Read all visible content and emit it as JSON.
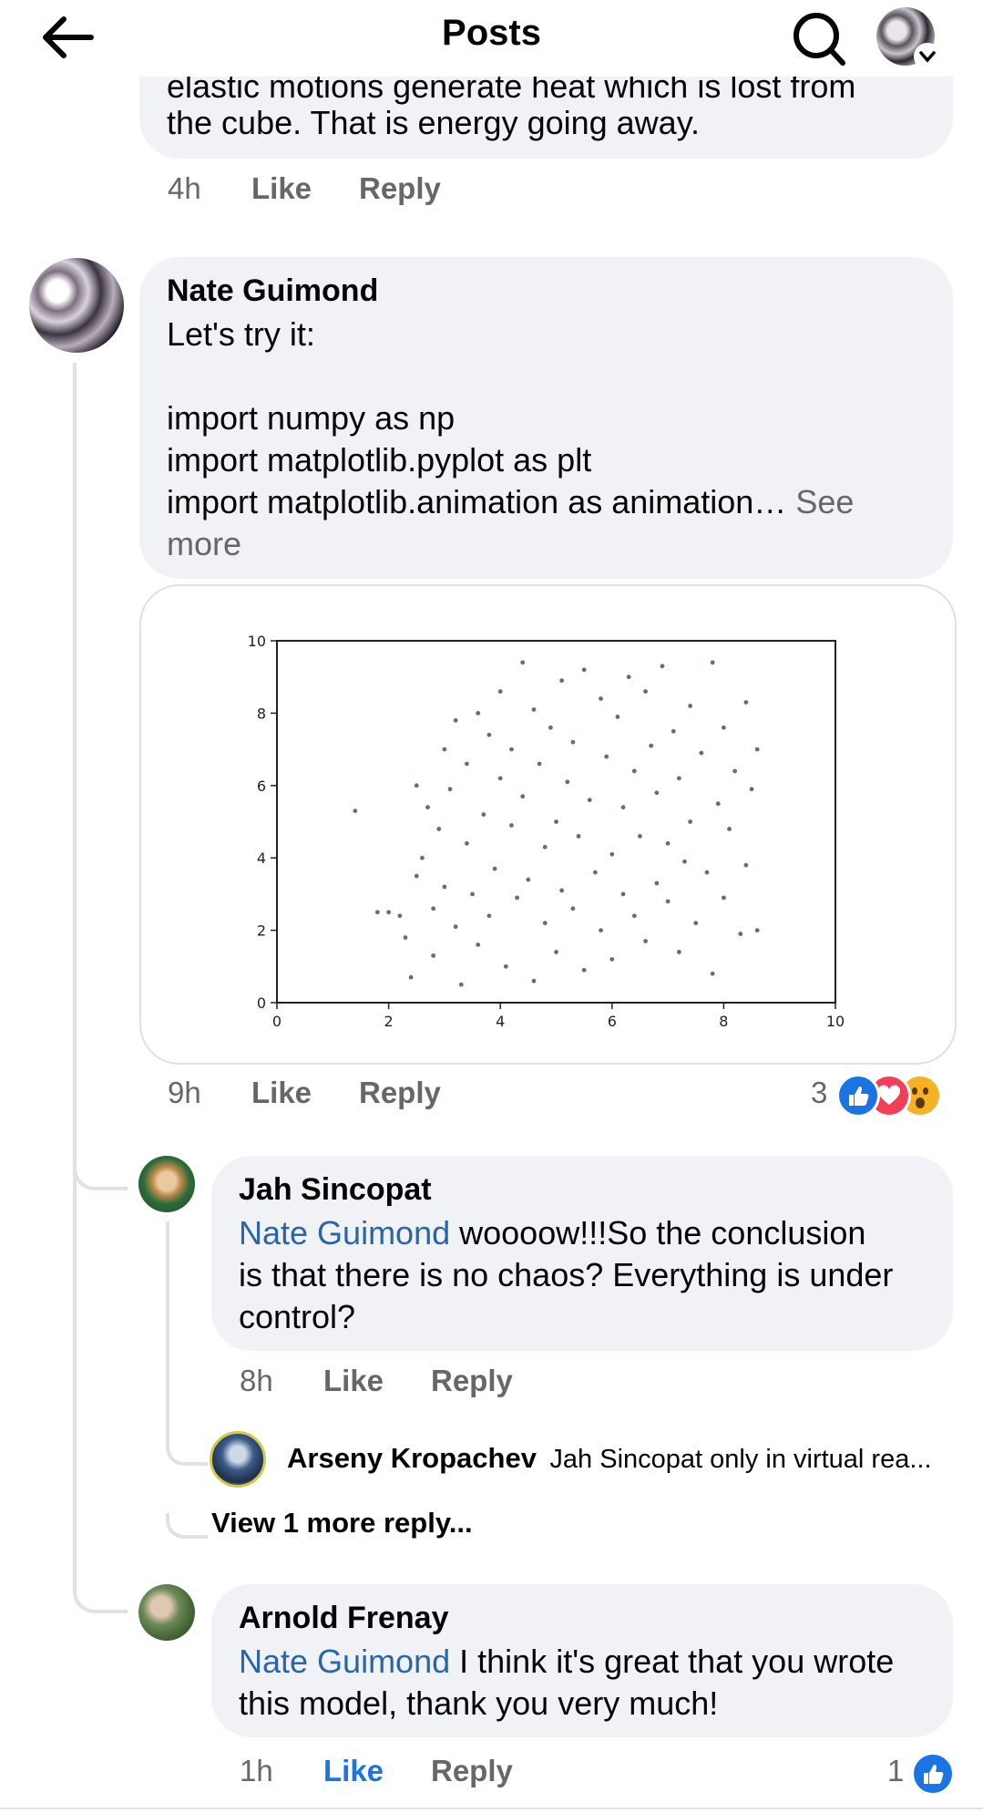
{
  "header": {
    "title": "Posts"
  },
  "top_comment": {
    "partial_text_line": "elastic motions generate heat which is lost from",
    "text_line": "the cube. That is energy going away.",
    "time": "4h",
    "like": "Like",
    "reply": "Reply"
  },
  "main_comment": {
    "author": "Nate Guimond",
    "lines": [
      "Let's try it:",
      "import numpy as np",
      "import matplotlib.pyplot as plt",
      "import matplotlib.animation as animation…"
    ],
    "see_more_1": "See",
    "see_more_2": "more",
    "time": "9h",
    "like": "Like",
    "reply": "Reply",
    "reaction_count": "3",
    "reactions": [
      "like-icon",
      "love-icon",
      "wow-icon"
    ]
  },
  "chart_data": {
    "type": "scatter",
    "title": "",
    "xlabel": "",
    "ylabel": "",
    "xlim": [
      0,
      10
    ],
    "ylim": [
      0,
      10
    ],
    "x_ticks": [
      "0",
      "2",
      "4",
      "6",
      "8",
      "10"
    ],
    "y_ticks": [
      "0",
      "2",
      "4",
      "6",
      "8",
      "10"
    ],
    "points": [
      [
        1.4,
        5.3
      ],
      [
        1.8,
        2.5
      ],
      [
        2.0,
        2.5
      ],
      [
        2.2,
        2.4
      ],
      [
        2.3,
        1.8
      ],
      [
        2.4,
        0.7
      ],
      [
        2.5,
        3.5
      ],
      [
        2.5,
        6.0
      ],
      [
        2.6,
        4.0
      ],
      [
        2.7,
        5.4
      ],
      [
        2.8,
        1.3
      ],
      [
        2.8,
        2.6
      ],
      [
        2.9,
        4.8
      ],
      [
        3.0,
        7.0
      ],
      [
        3.0,
        3.2
      ],
      [
        3.1,
        5.9
      ],
      [
        3.2,
        7.8
      ],
      [
        3.2,
        2.1
      ],
      [
        3.3,
        0.5
      ],
      [
        3.4,
        4.4
      ],
      [
        3.4,
        6.6
      ],
      [
        3.5,
        3.0
      ],
      [
        3.6,
        8.0
      ],
      [
        3.6,
        1.6
      ],
      [
        3.7,
        5.2
      ],
      [
        3.8,
        7.4
      ],
      [
        3.8,
        2.4
      ],
      [
        3.9,
        3.7
      ],
      [
        4.0,
        8.6
      ],
      [
        4.0,
        6.2
      ],
      [
        4.1,
        1.0
      ],
      [
        4.2,
        4.9
      ],
      [
        4.2,
        7.0
      ],
      [
        4.3,
        2.9
      ],
      [
        4.4,
        9.4
      ],
      [
        4.4,
        5.7
      ],
      [
        4.5,
        3.4
      ],
      [
        4.6,
        8.1
      ],
      [
        4.6,
        0.6
      ],
      [
        4.7,
        6.6
      ],
      [
        4.8,
        2.2
      ],
      [
        4.8,
        4.3
      ],
      [
        4.9,
        7.6
      ],
      [
        5.0,
        5.0
      ],
      [
        5.0,
        1.4
      ],
      [
        5.1,
        8.9
      ],
      [
        5.1,
        3.1
      ],
      [
        5.2,
        6.1
      ],
      [
        5.3,
        2.6
      ],
      [
        5.3,
        7.2
      ],
      [
        5.4,
        4.6
      ],
      [
        5.5,
        9.2
      ],
      [
        5.5,
        0.9
      ],
      [
        5.6,
        5.6
      ],
      [
        5.7,
        3.6
      ],
      [
        5.8,
        8.4
      ],
      [
        5.8,
        2.0
      ],
      [
        5.9,
        6.8
      ],
      [
        6.0,
        4.1
      ],
      [
        6.0,
        1.2
      ],
      [
        6.1,
        7.9
      ],
      [
        6.2,
        3.0
      ],
      [
        6.2,
        5.4
      ],
      [
        6.3,
        9.0
      ],
      [
        6.4,
        2.4
      ],
      [
        6.4,
        6.4
      ],
      [
        6.5,
        4.6
      ],
      [
        6.6,
        8.6
      ],
      [
        6.6,
        1.7
      ],
      [
        6.7,
        7.1
      ],
      [
        6.8,
        3.3
      ],
      [
        6.8,
        5.8
      ],
      [
        6.9,
        9.3
      ],
      [
        7.0,
        2.8
      ],
      [
        7.0,
        4.4
      ],
      [
        7.1,
        7.5
      ],
      [
        7.2,
        1.4
      ],
      [
        7.2,
        6.2
      ],
      [
        7.3,
        3.9
      ],
      [
        7.4,
        8.2
      ],
      [
        7.4,
        5.0
      ],
      [
        7.5,
        2.2
      ],
      [
        7.6,
        6.9
      ],
      [
        7.7,
        3.6
      ],
      [
        7.8,
        9.4
      ],
      [
        7.8,
        0.8
      ],
      [
        7.9,
        5.5
      ],
      [
        8.0,
        7.6
      ],
      [
        8.0,
        2.9
      ],
      [
        8.1,
        4.8
      ],
      [
        8.2,
        6.4
      ],
      [
        8.3,
        1.9
      ],
      [
        8.4,
        8.3
      ],
      [
        8.4,
        3.8
      ],
      [
        8.5,
        5.9
      ],
      [
        8.6,
        2.0
      ],
      [
        8.6,
        7.0
      ]
    ]
  },
  "reply_1": {
    "author": "Jah Sincopat",
    "mention": "Nate Guimond",
    "text_after_mention": "woooow!!!So the conclusion",
    "text_line_2": "is that there is no chaos? Everything is under",
    "text_line_3": "control?",
    "time": "8h",
    "like": "Like",
    "reply": "Reply"
  },
  "nested_reply": {
    "author": "Arseny Kropachev",
    "preview": "Jah Sincopat only in virtual rea..."
  },
  "view_more": "View 1 more reply...",
  "reply_2": {
    "author": "Arnold Frenay",
    "mention": "Nate Guimond",
    "text_after_mention": "I think it's great that you wrote",
    "text_line_2": "this model, thank you very much!",
    "time": "1h",
    "like": "Like",
    "reply": "Reply",
    "reaction_count": "1"
  }
}
